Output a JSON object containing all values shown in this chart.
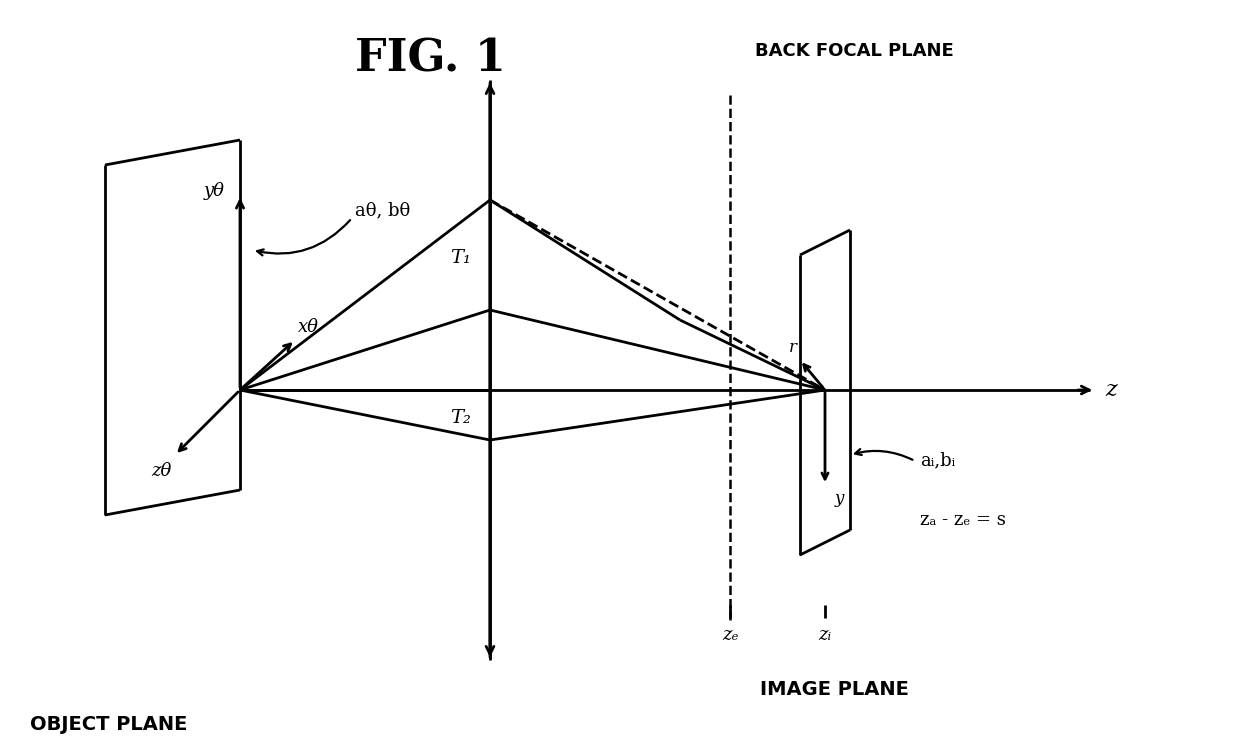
{
  "title": "FIG. 1",
  "bg_color": "#ffffff",
  "line_color": "#000000",
  "title_fontsize": 32,
  "fig_width": 12.4,
  "fig_height": 7.47,
  "labels": {
    "back_focal_plane": "BACK FOCAL PLANE",
    "image_plane": "IMAGE PLANE",
    "object_plane": "OBJECT PLANE",
    "z_axis": "z",
    "T1": "T₁",
    "T2": "T₂",
    "a_theta_b_theta": "aθ, bθ",
    "y_theta": "yθ",
    "x_theta": "xθ",
    "z_theta": "zθ",
    "z_f": "zₑ",
    "z_i": "zᵢ",
    "r_label": "r",
    "y_label": "y",
    "a_i_b_i": "aᵢ,bᵢ",
    "za_minus_zf": "zₐ - zₑ = s"
  }
}
